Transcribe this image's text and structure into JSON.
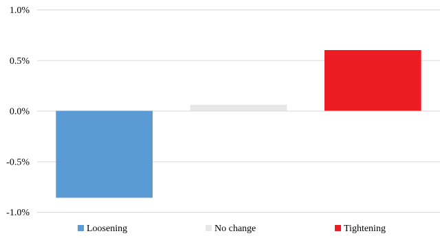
{
  "chart_data": {
    "type": "bar",
    "categories": [
      "Loosening",
      "No change",
      "Tightening"
    ],
    "values": [
      -0.86,
      0.06,
      0.6
    ],
    "colors": [
      "#5B9BD5",
      "#E7E7E7",
      "#EE1C25"
    ],
    "title": "",
    "xlabel": "",
    "ylabel": "",
    "ylim": [
      -1.0,
      1.0
    ],
    "yticks": [
      1.0,
      0.5,
      0.0,
      -0.5,
      -1.0
    ],
    "ytick_labels": [
      "1.0%",
      "0.5%",
      "0.0%",
      "-0.5%",
      "-1.0%"
    ],
    "grid": true,
    "grid_color": "#D9D9D9",
    "legend": {
      "position": "bottom",
      "entries": [
        "Loosening",
        "No change",
        "Tightening"
      ]
    }
  }
}
